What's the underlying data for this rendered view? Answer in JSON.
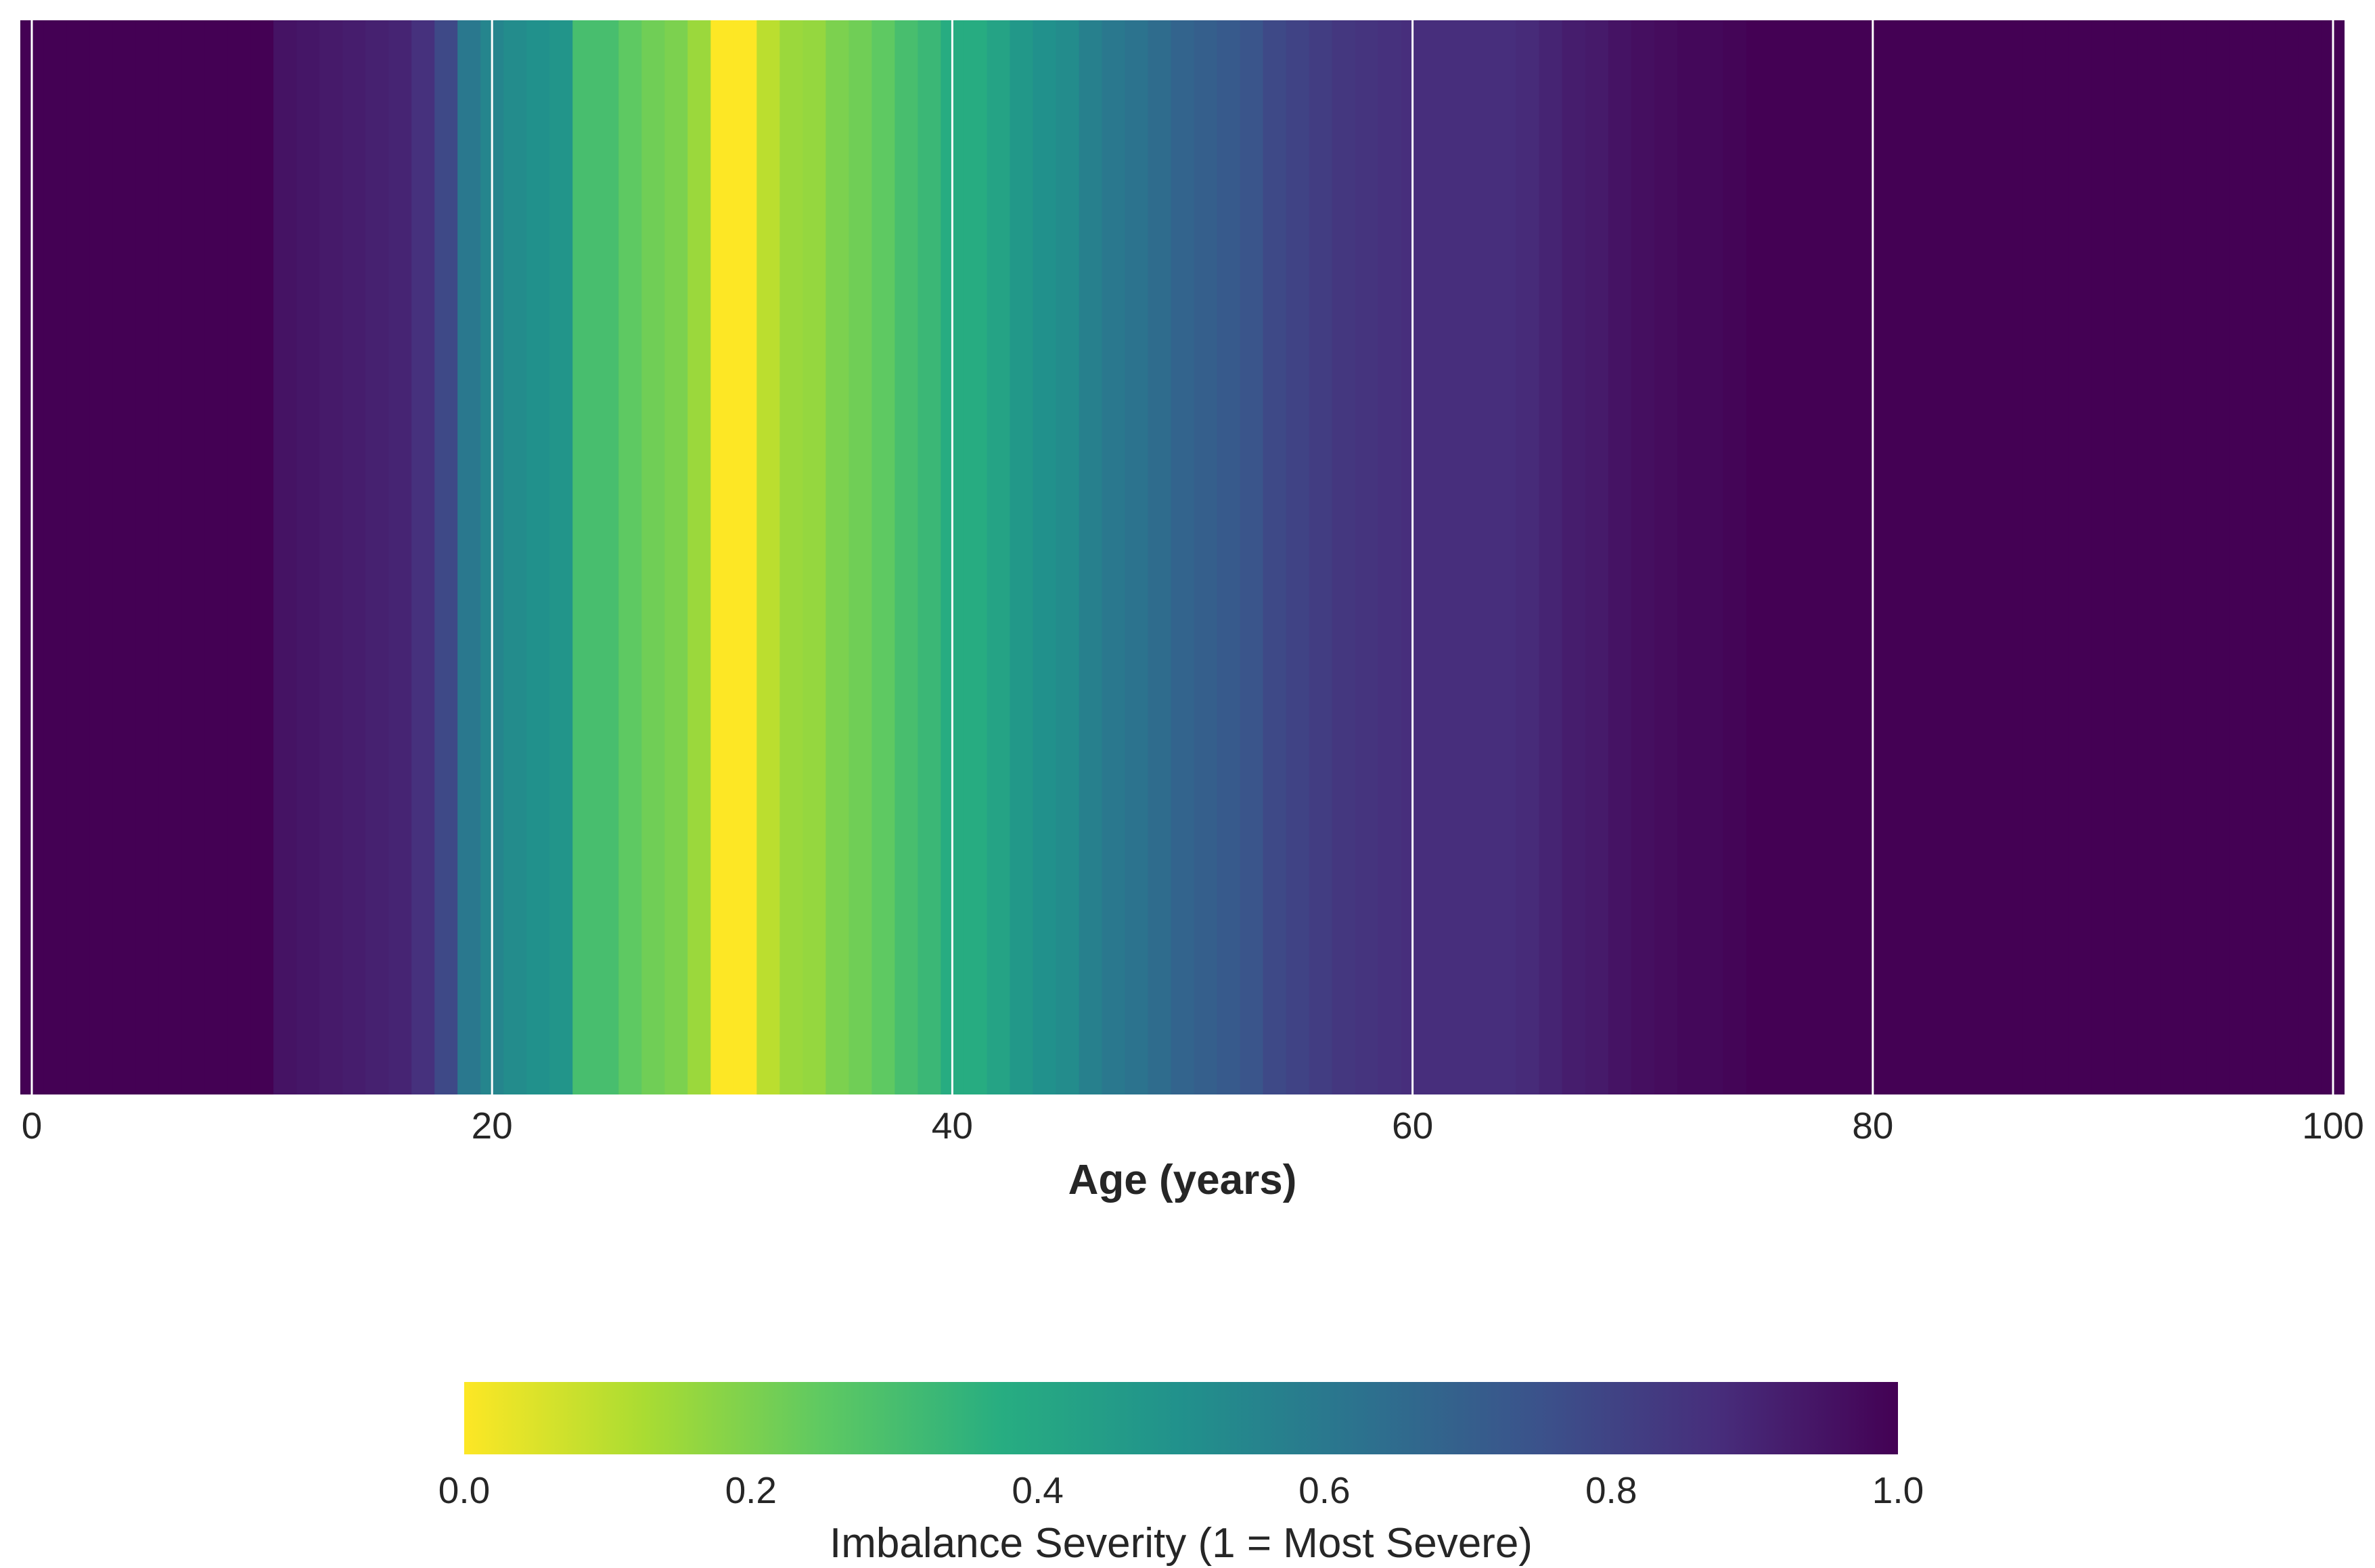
{
  "chart_data": {
    "type": "heatmap",
    "title": "",
    "xlabel": "Age (years)",
    "ylabel": "",
    "xlim": [
      -0.5,
      100.5
    ],
    "x_ticks": [
      "0",
      "20",
      "40",
      "60",
      "80",
      "100"
    ],
    "x_tick_values": [
      0,
      20,
      40,
      60,
      80,
      100
    ],
    "grid": true,
    "colormap": "viridis_r",
    "x": [
      0,
      1,
      2,
      3,
      4,
      5,
      6,
      7,
      8,
      9,
      10,
      11,
      12,
      13,
      14,
      15,
      16,
      17,
      18,
      19,
      20,
      21,
      22,
      23,
      24,
      25,
      26,
      27,
      28,
      29,
      30,
      31,
      32,
      33,
      34,
      35,
      36,
      37,
      38,
      39,
      40,
      41,
      42,
      43,
      44,
      45,
      46,
      47,
      48,
      49,
      50,
      51,
      52,
      53,
      54,
      55,
      56,
      57,
      58,
      59,
      60,
      61,
      62,
      63,
      64,
      65,
      66,
      67,
      68,
      69,
      70,
      71,
      72,
      73,
      74,
      75,
      76,
      77,
      78,
      79,
      80,
      81,
      82,
      83,
      84,
      85,
      86,
      87,
      88,
      89,
      90,
      91,
      92,
      93,
      94,
      95,
      96,
      97,
      98,
      99,
      100
    ],
    "values": [
      1.0,
      1.0,
      1.0,
      1.0,
      1.0,
      1.0,
      1.0,
      1.0,
      1.0,
      1.0,
      1.0,
      0.95,
      0.94,
      0.93,
      0.92,
      0.91,
      0.9,
      0.86,
      0.78,
      0.6,
      0.55,
      0.52,
      0.5,
      0.48,
      0.3,
      0.3,
      0.25,
      0.22,
      0.2,
      0.15,
      0.0,
      0.0,
      0.1,
      0.15,
      0.16,
      0.2,
      0.22,
      0.25,
      0.3,
      0.33,
      0.38,
      0.38,
      0.42,
      0.47,
      0.5,
      0.52,
      0.57,
      0.6,
      0.62,
      0.65,
      0.68,
      0.7,
      0.72,
      0.74,
      0.78,
      0.8,
      0.82,
      0.84,
      0.85,
      0.86,
      0.87,
      0.87,
      0.87,
      0.87,
      0.87,
      0.88,
      0.9,
      0.92,
      0.93,
      0.95,
      0.96,
      0.97,
      0.98,
      0.98,
      0.99,
      1.0,
      1.0,
      1.0,
      1.0,
      1.0,
      1.0,
      1.0,
      1.0,
      1.0,
      1.0,
      1.0,
      1.0,
      1.0,
      1.0,
      1.0,
      1.0,
      1.0,
      1.0,
      1.0,
      1.0,
      1.0,
      1.0,
      1.0,
      1.0,
      1.0,
      1.0
    ],
    "colorbar": {
      "label": "Imbalance Severity (1 = Most Severe)",
      "range": [
        0.0,
        1.0
      ],
      "ticks": [
        "0.0",
        "0.2",
        "0.4",
        "0.6",
        "0.8",
        "1.0"
      ],
      "tick_values": [
        0.0,
        0.2,
        0.4,
        0.6,
        0.8,
        1.0
      ],
      "orientation": "horizontal",
      "placement": "bottom"
    }
  }
}
